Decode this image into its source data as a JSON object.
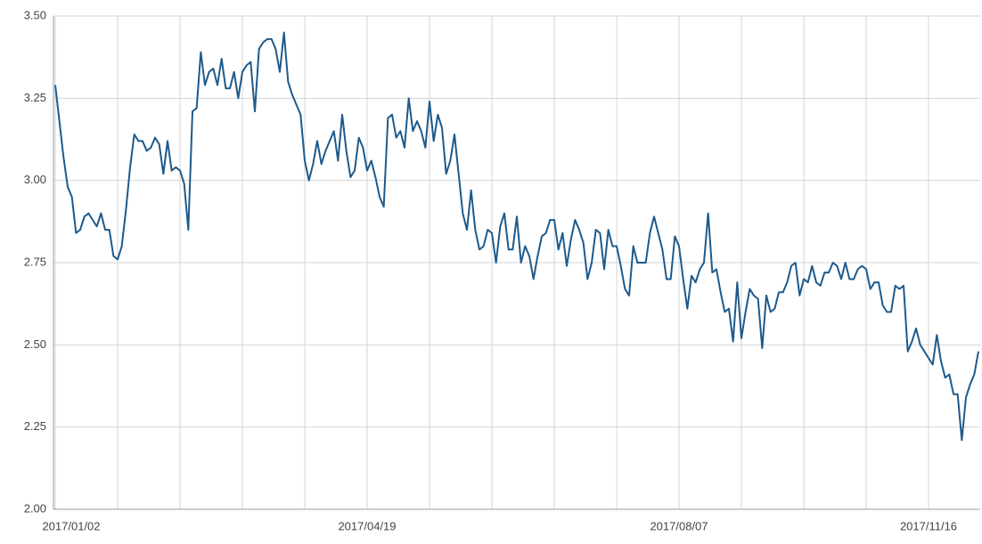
{
  "chart_data": {
    "type": "line",
    "categories": [
      "2017/01/02",
      null,
      null,
      null,
      null,
      null,
      null,
      null,
      null,
      null,
      null,
      null,
      null,
      null,
      null,
      null,
      null,
      null,
      null,
      null,
      null,
      null,
      null,
      null,
      null,
      null,
      null,
      null,
      null,
      null,
      null,
      null,
      null,
      null,
      null,
      null,
      null,
      null,
      null,
      null,
      null,
      null,
      null,
      null,
      null,
      null,
      null,
      null,
      null,
      null,
      null,
      null,
      null,
      null,
      null,
      null,
      null,
      null,
      null,
      null,
      null,
      null,
      null,
      null,
      null,
      null,
      null,
      null,
      null,
      null,
      null,
      null,
      null,
      null,
      null,
      "2017/04/19",
      null,
      null,
      null,
      null,
      null,
      null,
      null,
      null,
      null,
      null,
      null,
      null,
      null,
      null,
      null,
      null,
      null,
      null,
      null,
      null,
      null,
      null,
      null,
      null,
      null,
      null,
      null,
      null,
      null,
      null,
      null,
      null,
      null,
      null,
      null,
      null,
      null,
      null,
      null,
      null,
      null,
      null,
      null,
      null,
      null,
      null,
      null,
      null,
      null,
      null,
      null,
      null,
      null,
      null,
      null,
      null,
      null,
      null,
      null,
      null,
      null,
      null,
      null,
      null,
      null,
      null,
      null,
      null,
      null,
      null,
      null,
      null,
      null,
      null,
      "2017/08/07",
      null,
      null,
      null,
      null,
      null,
      null,
      null,
      null,
      null,
      null,
      null,
      null,
      null,
      null,
      null,
      null,
      null,
      null,
      null,
      null,
      null,
      null,
      null,
      null,
      null,
      null,
      null,
      null,
      null,
      null,
      null,
      null,
      null,
      null,
      null,
      null,
      null,
      null,
      null,
      null,
      null,
      null,
      null,
      null,
      null,
      null,
      null,
      null,
      null,
      null,
      null,
      null,
      null,
      null,
      null,
      null,
      null,
      null,
      null,
      "2017/11/16",
      null,
      null,
      null,
      null,
      null,
      null,
      null,
      null,
      null,
      null,
      null,
      null
    ],
    "series": [
      {
        "color": "#1d5a8c",
        "values": [
          3.29,
          3.18,
          3.07,
          2.98,
          2.95,
          2.84,
          2.85,
          2.89,
          2.9,
          2.88,
          2.86,
          2.9,
          2.85,
          2.85,
          2.77,
          2.76,
          2.8,
          2.91,
          3.04,
          3.14,
          3.12,
          3.12,
          3.09,
          3.1,
          3.13,
          3.11,
          3.02,
          3.12,
          3.03,
          3.04,
          3.03,
          2.99,
          2.85,
          3.21,
          3.22,
          3.39,
          3.29,
          3.33,
          3.34,
          3.29,
          3.37,
          3.28,
          3.28,
          3.33,
          3.25,
          3.33,
          3.35,
          3.36,
          3.21,
          3.4,
          3.42,
          3.43,
          3.43,
          3.4,
          3.33,
          3.45,
          3.3,
          3.26,
          3.23,
          3.2,
          3.06,
          3.0,
          3.05,
          3.12,
          3.05,
          3.09,
          3.12,
          3.15,
          3.06,
          3.2,
          3.09,
          3.01,
          3.03,
          3.13,
          3.1,
          3.03,
          3.06,
          3.01,
          2.95,
          2.92,
          3.19,
          3.2,
          3.13,
          3.15,
          3.1,
          3.25,
          3.15,
          3.18,
          3.15,
          3.1,
          3.24,
          3.12,
          3.2,
          3.16,
          3.02,
          3.06,
          3.14,
          3.02,
          2.9,
          2.85,
          2.97,
          2.85,
          2.79,
          2.8,
          2.85,
          2.84,
          2.75,
          2.86,
          2.9,
          2.79,
          2.79,
          2.89,
          2.75,
          2.8,
          2.77,
          2.7,
          2.77,
          2.83,
          2.84,
          2.88,
          2.88,
          2.79,
          2.84,
          2.74,
          2.82,
          2.88,
          2.85,
          2.81,
          2.7,
          2.75,
          2.85,
          2.84,
          2.73,
          2.85,
          2.8,
          2.8,
          2.74,
          2.67,
          2.65,
          2.8,
          2.75,
          2.75,
          2.75,
          2.84,
          2.89,
          2.84,
          2.79,
          2.7,
          2.7,
          2.83,
          2.8,
          2.7,
          2.61,
          2.71,
          2.69,
          2.73,
          2.75,
          2.9,
          2.72,
          2.73,
          2.66,
          2.6,
          2.61,
          2.51,
          2.69,
          2.52,
          2.6,
          2.67,
          2.65,
          2.64,
          2.49,
          2.65,
          2.6,
          2.61,
          2.66,
          2.66,
          2.69,
          2.74,
          2.75,
          2.65,
          2.7,
          2.69,
          2.74,
          2.69,
          2.68,
          2.72,
          2.72,
          2.75,
          2.74,
          2.7,
          2.75,
          2.7,
          2.7,
          2.73,
          2.74,
          2.73,
          2.67,
          2.69,
          2.69,
          2.62,
          2.6,
          2.6,
          2.68,
          2.67,
          2.68,
          2.48,
          2.51,
          2.55,
          2.5,
          2.48,
          2.46,
          2.44,
          2.53,
          2.45,
          2.4,
          2.41,
          2.35,
          2.35,
          2.21,
          2.34,
          2.38,
          2.41,
          2.48
        ]
      }
    ],
    "ylim": [
      2,
      3.5
    ],
    "yticks": [
      {
        "value": 2,
        "label": "2.00"
      },
      {
        "value": 2.25,
        "label": "2.25"
      },
      {
        "value": 2.5,
        "label": "2.50"
      },
      {
        "value": 2.75,
        "label": "2.75"
      },
      {
        "value": 3,
        "label": "3.00"
      },
      {
        "value": 3.25,
        "label": "3.25"
      },
      {
        "value": 3.5,
        "label": "3.50"
      }
    ],
    "grid": true
  }
}
